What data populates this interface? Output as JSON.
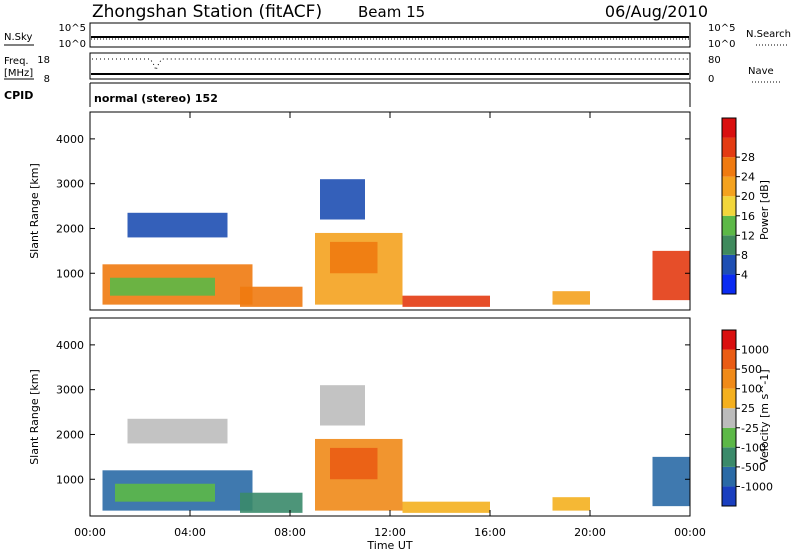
{
  "header": {
    "station": "Zhongshan Station (fitACF)",
    "beam": "Beam 15",
    "date": "06/Aug/2010"
  },
  "noise_panel": {
    "left_label": "N.Sky",
    "right_label": "N.Search",
    "left_ticks": [
      "10^5",
      "10^0"
    ],
    "right_ticks": [
      "10^5",
      "10^0"
    ]
  },
  "freq_panel": {
    "left_label_1": "Freq.",
    "left_label_2": "[MHz]",
    "right_label": "Nave",
    "left_ticks": [
      "18",
      "8"
    ],
    "right_ticks": [
      "80",
      "0"
    ],
    "cpid_label": "CPID"
  },
  "cpid_panel": {
    "text": "normal (stereo) 152"
  },
  "chart_data": [
    {
      "type": "heatmap",
      "ylabel": "Slant Range [km]",
      "yticks": [
        "1000",
        "2000",
        "3000",
        "4000"
      ],
      "ylim": [
        180,
        4600
      ],
      "xlim": [
        0,
        24
      ],
      "colorbar": {
        "label": "Power [dB]",
        "ticks": [
          "4",
          "8",
          "12",
          "16",
          "20",
          "24",
          "28"
        ],
        "colors": [
          "#0a2bf2",
          "#1e4fb3",
          "#3f8a5d",
          "#5cb847",
          "#f2d63b",
          "#f4a21f",
          "#ef7a10",
          "#e33b12",
          "#d90f0f"
        ]
      },
      "regions": [
        {
          "t0": 0.5,
          "t1": 6.5,
          "r0": 300,
          "r1": 1200,
          "color": "#ef7a10"
        },
        {
          "t0": 0.8,
          "t1": 5.0,
          "r0": 500,
          "r1": 900,
          "color": "#5cb847"
        },
        {
          "t0": 1.5,
          "t1": 5.5,
          "r0": 1800,
          "r1": 2350,
          "color": "#1e4fb3"
        },
        {
          "t0": 6.0,
          "t1": 8.5,
          "r0": 250,
          "r1": 700,
          "color": "#ef7a10"
        },
        {
          "t0": 9.0,
          "t1": 12.5,
          "r0": 300,
          "r1": 1900,
          "color": "#f4a21f"
        },
        {
          "t0": 9.6,
          "t1": 11.5,
          "r0": 1000,
          "r1": 1700,
          "color": "#ef7a10"
        },
        {
          "t0": 9.2,
          "t1": 11.0,
          "r0": 2200,
          "r1": 3100,
          "color": "#1e4fb3"
        },
        {
          "t0": 12.5,
          "t1": 16.0,
          "r0": 250,
          "r1": 500,
          "color": "#e33b12"
        },
        {
          "t0": 18.5,
          "t1": 20.0,
          "r0": 300,
          "r1": 600,
          "color": "#f4a21f"
        },
        {
          "t0": 22.5,
          "t1": 24.0,
          "r0": 400,
          "r1": 1500,
          "color": "#e33b12"
        }
      ]
    },
    {
      "type": "heatmap",
      "xlabel": "Time UT",
      "ylabel": "Slant Range [km]",
      "xticks": [
        "00:00",
        "04:00",
        "08:00",
        "12:00",
        "16:00",
        "20:00",
        "00:00"
      ],
      "yticks": [
        "1000",
        "2000",
        "3000",
        "4000"
      ],
      "ylim": [
        180,
        4600
      ],
      "xlim": [
        0,
        24
      ],
      "colorbar": {
        "label": "Velocity [m s^-1]",
        "ticks": [
          "1000",
          "500",
          "100",
          "25",
          "-25",
          "-100",
          "-500",
          "-1000"
        ],
        "colors": [
          "#1a3fbf",
          "#2a6aa6",
          "#3a8a6a",
          "#5cb847",
          "#bcbcbc",
          "#f4b01f",
          "#f08a18",
          "#ea5c14",
          "#d90f0f"
        ]
      },
      "regions": [
        {
          "t0": 0.5,
          "t1": 6.5,
          "r0": 300,
          "r1": 1200,
          "color": "#2a6aa6"
        },
        {
          "t0": 1.0,
          "t1": 5.0,
          "r0": 500,
          "r1": 900,
          "color": "#5cb847"
        },
        {
          "t0": 1.5,
          "t1": 5.5,
          "r0": 1800,
          "r1": 2350,
          "color": "#bcbcbc"
        },
        {
          "t0": 6.0,
          "t1": 8.5,
          "r0": 250,
          "r1": 700,
          "color": "#3a8a6a"
        },
        {
          "t0": 9.0,
          "t1": 12.5,
          "r0": 300,
          "r1": 1900,
          "color": "#f08a18"
        },
        {
          "t0": 9.6,
          "t1": 11.5,
          "r0": 1000,
          "r1": 1700,
          "color": "#ea5c14"
        },
        {
          "t0": 9.2,
          "t1": 11.0,
          "r0": 2200,
          "r1": 3100,
          "color": "#bcbcbc"
        },
        {
          "t0": 12.5,
          "t1": 16.0,
          "r0": 250,
          "r1": 500,
          "color": "#f4b01f"
        },
        {
          "t0": 18.5,
          "t1": 20.0,
          "r0": 300,
          "r1": 600,
          "color": "#f4b01f"
        },
        {
          "t0": 22.5,
          "t1": 24.0,
          "r0": 400,
          "r1": 1500,
          "color": "#2a6aa6"
        }
      ]
    }
  ]
}
